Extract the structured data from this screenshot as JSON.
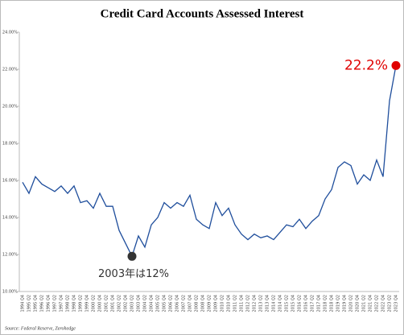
{
  "chart_data": {
    "type": "line",
    "title": "Credit Card Accounts Assessed Interest",
    "source": "Source: Federal Reserve, Zerohedge",
    "categories": [
      "1994 Q4",
      "1995 Q2",
      "1995 Q4",
      "1996 Q2",
      "1996 Q4",
      "1997 Q2",
      "1997 Q4",
      "1998 Q2",
      "1998 Q4",
      "1999 Q2",
      "1999 Q4",
      "2000 Q2",
      "2000 Q4",
      "2001 Q2",
      "2001 Q4",
      "2002 Q2",
      "2002 Q4",
      "2003 Q2",
      "2003 Q4",
      "2004 Q2",
      "2004 Q4",
      "2005 Q2",
      "2005 Q4",
      "2006 Q2",
      "2006 Q4",
      "2007 Q2",
      "2007 Q4",
      "2008 Q2",
      "2008 Q4",
      "2009 Q2",
      "2009 Q4",
      "2010 Q2",
      "2010 Q4",
      "2011 Q2",
      "2011 Q4",
      "2012 Q2",
      "2012 Q4",
      "2013 Q2",
      "2013 Q4",
      "2014 Q2",
      "2014 Q4",
      "2015 Q2",
      "2015 Q4",
      "2016 Q2",
      "2016 Q4",
      "2017 Q2",
      "2017 Q4",
      "2018 Q2",
      "2018 Q4",
      "2019 Q2",
      "2019 Q4",
      "2020 Q2",
      "2020 Q4",
      "2021 Q2",
      "2021 Q4",
      "2022 Q2",
      "2022 Q4",
      "2023 Q2",
      "2023 Q4"
    ],
    "series": [
      {
        "name": "Credit Card Accounts Assessed Interest",
        "color": "#1f4e9c",
        "values": [
          15.9,
          15.3,
          16.2,
          15.8,
          15.6,
          15.4,
          15.7,
          15.3,
          15.7,
          14.8,
          14.9,
          14.5,
          15.3,
          14.6,
          14.6,
          13.3,
          12.6,
          11.9,
          13.0,
          12.4,
          13.6,
          14.0,
          14.8,
          14.5,
          14.8,
          14.6,
          15.2,
          13.9,
          13.6,
          13.4,
          14.8,
          14.1,
          14.5,
          13.6,
          13.1,
          12.8,
          13.1,
          12.9,
          13.0,
          12.8,
          13.2,
          13.6,
          13.5,
          13.9,
          13.4,
          13.8,
          14.1,
          15.0,
          15.5,
          16.7,
          17.0,
          16.8,
          15.8,
          16.3,
          16.0,
          17.1,
          16.2,
          20.3,
          22.2
        ]
      }
    ],
    "ylim": [
      10,
      24
    ],
    "yticks": [
      {
        "value": 10,
        "label": "10.00%"
      },
      {
        "value": 12,
        "label": "12.00%"
      },
      {
        "value": 14,
        "label": "14.00%"
      },
      {
        "value": 16,
        "label": "16.00%"
      },
      {
        "value": 18,
        "label": "18.00%"
      },
      {
        "value": 20,
        "label": "20.00%"
      },
      {
        "value": 22,
        "label": "22.00%"
      },
      {
        "value": 24,
        "label": "24.00%"
      }
    ],
    "grid": false,
    "annotations": [
      {
        "text": "22.2%",
        "at": "2023 Q4",
        "color": "#e00000"
      },
      {
        "text": "2003年は12%",
        "at": "2003 Q2",
        "color": "#333333"
      }
    ]
  }
}
